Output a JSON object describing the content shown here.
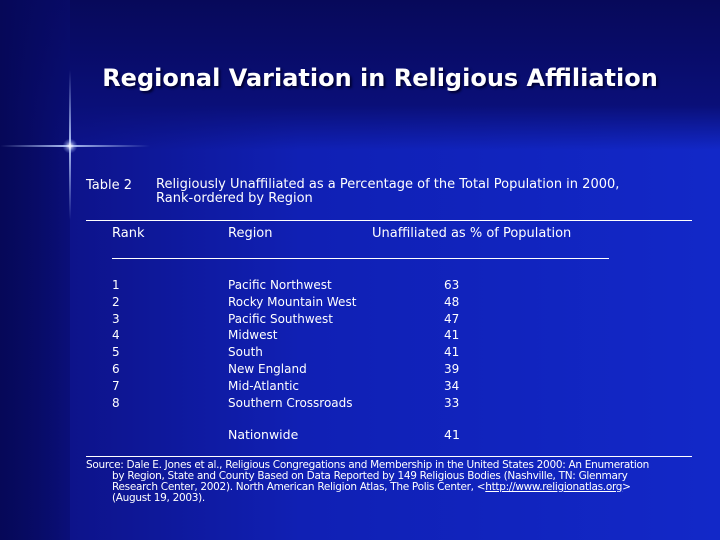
{
  "title": "Regional Variation in Religious Affiliation",
  "table": {
    "label": "Table 2",
    "caption_line1": "Religiously Unaffiliated as a Percentage of the Total Population in 2000,",
    "caption_line2": "Rank-ordered by Region",
    "headers": {
      "rank": "Rank",
      "region": "Region",
      "value": "Unaffiliated as % of Population"
    },
    "rows": [
      {
        "rank": "1",
        "region": "Pacific Northwest",
        "value": "63"
      },
      {
        "rank": "2",
        "region": "Rocky Mountain West",
        "value": "48"
      },
      {
        "rank": "3",
        "region": "Pacific Southwest",
        "value": "47"
      },
      {
        "rank": "4",
        "region": "Midwest",
        "value": "41"
      },
      {
        "rank": "5",
        "region": "South",
        "value": "41"
      },
      {
        "rank": "6",
        "region": "New England",
        "value": "39"
      },
      {
        "rank": "7",
        "region": "Mid-Atlantic",
        "value": "34"
      },
      {
        "rank": "8",
        "region": "Southern Crossroads",
        "value": "33"
      }
    ],
    "nationwide": {
      "label": "Nationwide",
      "value": "41"
    }
  },
  "source": {
    "line1": "Source: Dale E. Jones et al.,  Religious Congregations and Membership in the United States 2000: An Enumeration",
    "line2": "by Region, State and County Based on Data Reported by 149 Religious Bodies (Nashville, TN: Glenmary",
    "line3_text": "Research Center, 2002).   North American Religion Atlas, The Polis Center, <",
    "line3_link": "http://www.religionatlas.org",
    "line3_end": ">",
    "line4": "(August 19, 2003)."
  },
  "colors": {
    "background": "#1228c8",
    "text": "#ffffff"
  }
}
